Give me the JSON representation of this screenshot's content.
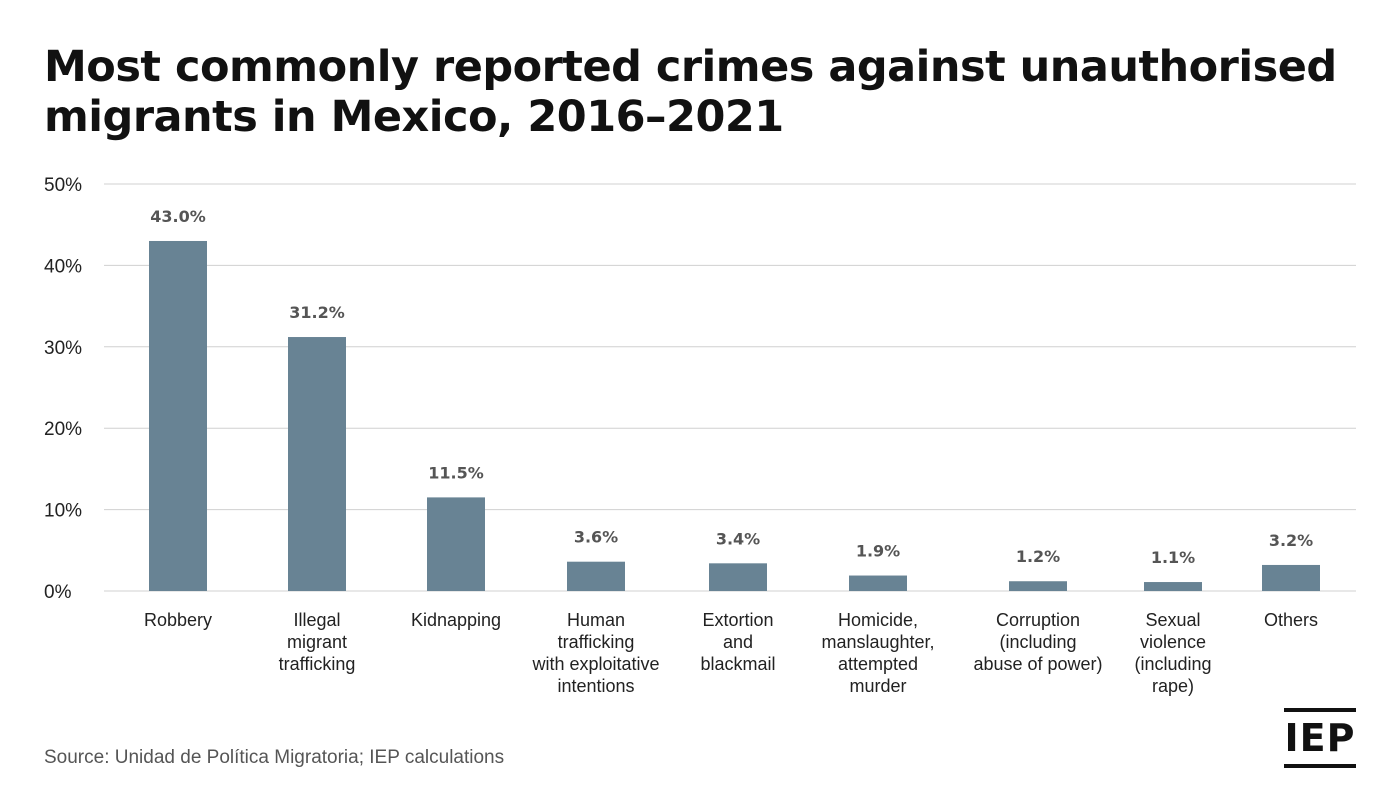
{
  "title_lines": [
    "Most commonly reported crimes against unauthorised",
    "migrants in Mexico, 2016–2021"
  ],
  "source": "Source: Unidad de Política Migratoria; IEP calculations",
  "logo_text": "IEP",
  "colors": {
    "bar": "#688394",
    "grid": "#d0d0d0",
    "text": "#222222",
    "value_label": "#555555"
  },
  "chart_data": {
    "type": "bar",
    "title": "Most commonly reported crimes against unauthorised migrants in Mexico, 2016–2021",
    "categories": [
      [
        "Robbery"
      ],
      [
        "Illegal",
        "migrant",
        "trafficking"
      ],
      [
        "Kidnapping"
      ],
      [
        "Human",
        "trafficking",
        "with exploitative",
        "intentions"
      ],
      [
        "Extortion",
        "and",
        "blackmail"
      ],
      [
        "Homicide,",
        "manslaughter,",
        "attempted",
        "murder"
      ],
      [
        "Corruption",
        "(including",
        "abuse of power)"
      ],
      [
        "Sexual",
        "violence",
        "(including",
        "rape)"
      ],
      [
        "Others"
      ]
    ],
    "values": [
      43.0,
      31.2,
      11.5,
      3.6,
      3.4,
      1.9,
      1.2,
      1.1,
      3.2
    ],
    "value_labels": [
      "43.0%",
      "31.2%",
      "11.5%",
      "3.6%",
      "3.4%",
      "1.9%",
      "1.2%",
      "1.1%",
      "3.2%"
    ],
    "ylim": [
      0,
      50
    ],
    "yticks": [
      0,
      10,
      20,
      30,
      40,
      50
    ],
    "ytick_labels": [
      "0%",
      "10%",
      "20%",
      "30%",
      "40%",
      "50%"
    ],
    "xlabel": "",
    "ylabel": "",
    "grid": true,
    "legend": "none"
  }
}
